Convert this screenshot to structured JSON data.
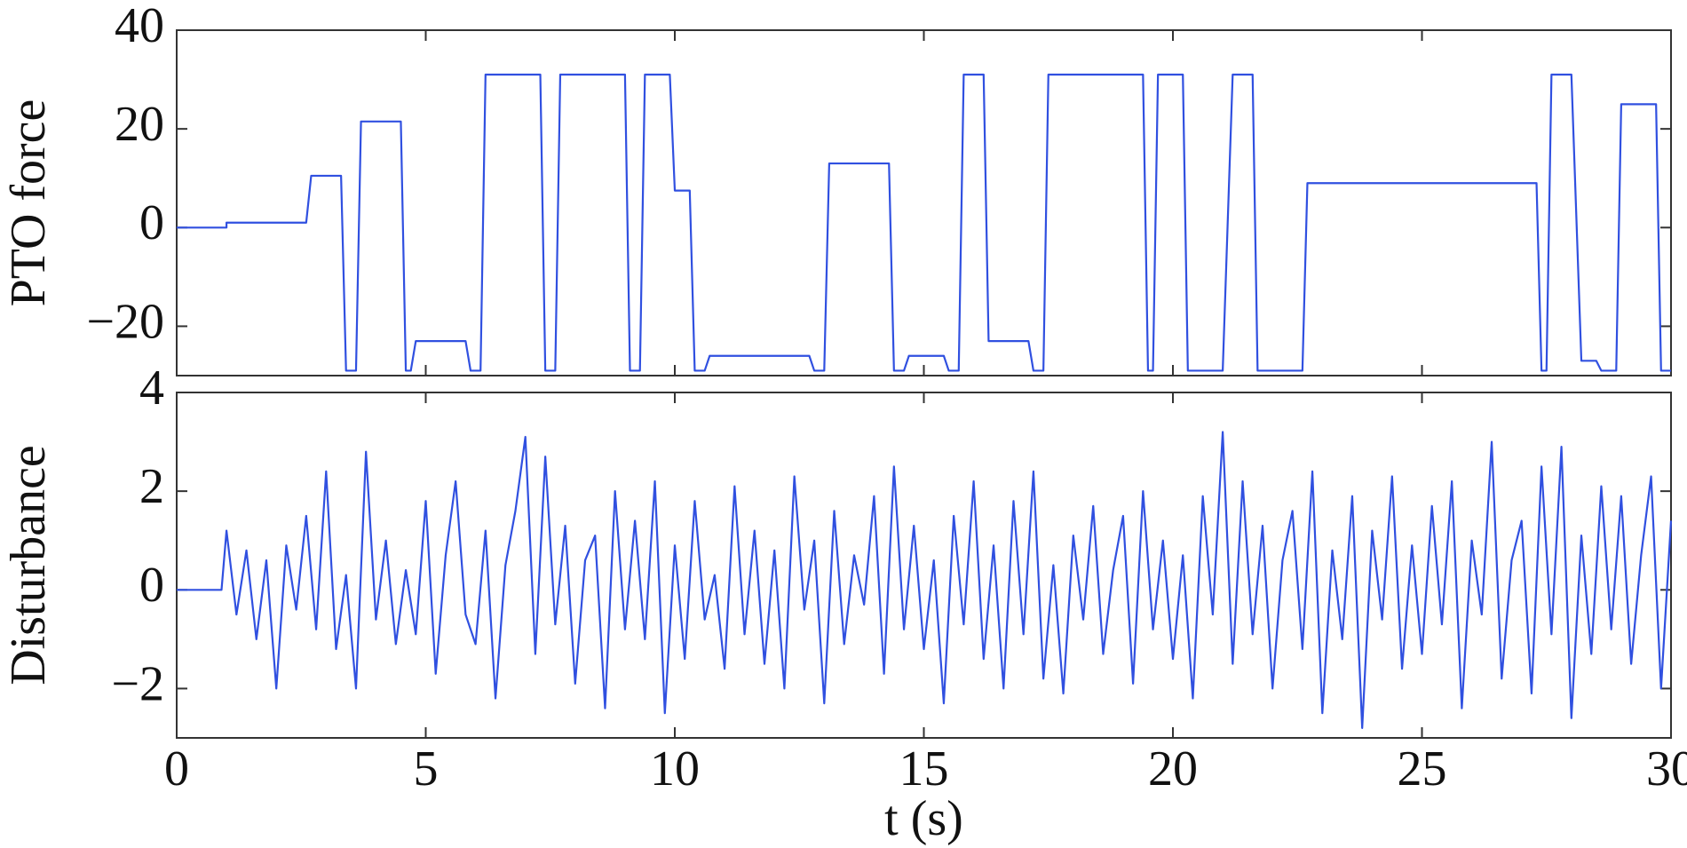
{
  "chart_data": [
    {
      "type": "line",
      "y_label": "PTO force",
      "x": [
        0,
        1.0,
        1.0,
        2.6,
        2.7,
        3.3,
        3.4,
        3.6,
        3.7,
        4.5,
        4.6,
        4.7,
        4.8,
        5.8,
        5.9,
        6.1,
        6.2,
        7.3,
        7.4,
        7.6,
        7.7,
        9.0,
        9.1,
        9.3,
        9.4,
        9.9,
        10.0,
        10.3,
        10.4,
        10.6,
        10.7,
        12.7,
        12.8,
        13.0,
        13.1,
        14.3,
        14.4,
        14.6,
        14.7,
        15.4,
        15.5,
        15.7,
        15.8,
        16.2,
        16.3,
        17.1,
        17.2,
        17.4,
        17.5,
        19.4,
        19.5,
        19.6,
        19.7,
        20.2,
        20.3,
        21.0,
        21.2,
        21.6,
        21.7,
        22.6,
        22.7,
        27.3,
        27.4,
        27.5,
        27.6,
        28.0,
        28.2,
        28.5,
        28.6,
        28.9,
        29.0,
        29.7,
        29.8,
        30.0
      ],
      "series": [
        {
          "color": "#3050e0",
          "values": [
            0,
            0,
            1,
            1,
            10.5,
            10.5,
            -29,
            -29,
            21.5,
            21.5,
            -29,
            -29,
            -23,
            -23,
            -29,
            -29,
            31,
            31,
            -29,
            -29,
            31,
            31,
            -29,
            -29,
            31,
            31,
            7.5,
            7.5,
            -29,
            -29,
            -26,
            -26,
            -29,
            -29,
            13,
            13,
            -29,
            -29,
            -26,
            -26,
            -29,
            -29,
            31,
            31,
            -23,
            -23,
            -29,
            -29,
            31,
            31,
            -29,
            -29,
            31,
            31,
            -29,
            -29,
            31,
            31,
            -29,
            -29,
            9,
            9,
            -29,
            -29,
            31,
            31,
            -27,
            -27,
            -29,
            -29,
            25,
            25,
            -29,
            -29
          ]
        }
      ],
      "xlim": [
        0,
        30
      ],
      "ylim": [
        -30,
        40
      ],
      "yticks": [
        {
          "value": -20,
          "label": "−20"
        },
        0,
        20,
        40
      ]
    },
    {
      "type": "line",
      "y_label": "Disturbance",
      "x_label": "t (s)",
      "x": [
        0,
        0.9,
        1.0,
        1.2,
        1.4,
        1.6,
        1.8,
        2.0,
        2.2,
        2.4,
        2.6,
        2.8,
        3.0,
        3.2,
        3.4,
        3.6,
        3.8,
        4.0,
        4.2,
        4.4,
        4.6,
        4.8,
        5.0,
        5.2,
        5.4,
        5.6,
        5.8,
        6.0,
        6.2,
        6.4,
        6.6,
        6.8,
        7.0,
        7.2,
        7.4,
        7.6,
        7.8,
        8.0,
        8.2,
        8.4,
        8.6,
        8.8,
        9.0,
        9.2,
        9.4,
        9.6,
        9.8,
        10.0,
        10.2,
        10.4,
        10.6,
        10.8,
        11.0,
        11.2,
        11.4,
        11.6,
        11.8,
        12.0,
        12.2,
        12.4,
        12.6,
        12.8,
        13.0,
        13.2,
        13.4,
        13.6,
        13.8,
        14.0,
        14.2,
        14.4,
        14.6,
        14.8,
        15.0,
        15.2,
        15.4,
        15.6,
        15.8,
        16.0,
        16.2,
        16.4,
        16.6,
        16.8,
        17.0,
        17.2,
        17.4,
        17.6,
        17.8,
        18.0,
        18.2,
        18.4,
        18.6,
        18.8,
        19.0,
        19.2,
        19.4,
        19.6,
        19.8,
        20.0,
        20.2,
        20.4,
        20.6,
        20.8,
        21.0,
        21.2,
        21.4,
        21.6,
        21.8,
        22.0,
        22.2,
        22.4,
        22.6,
        22.8,
        23.0,
        23.2,
        23.4,
        23.6,
        23.8,
        24.0,
        24.2,
        24.4,
        24.6,
        24.8,
        25.0,
        25.2,
        25.4,
        25.6,
        25.8,
        26.0,
        26.2,
        26.4,
        26.6,
        26.8,
        27.0,
        27.2,
        27.4,
        27.6,
        27.8,
        28.0,
        28.2,
        28.4,
        28.6,
        28.8,
        29.0,
        29.2,
        29.4,
        29.6,
        29.8,
        30.0
      ],
      "series": [
        {
          "color": "#3050e0",
          "values": [
            0,
            0,
            1.2,
            -0.5,
            0.8,
            -1.0,
            0.6,
            -2.0,
            0.9,
            -0.4,
            1.5,
            -0.8,
            2.4,
            -1.2,
            0.3,
            -2.0,
            2.8,
            -0.6,
            1.0,
            -1.1,
            0.4,
            -0.9,
            1.8,
            -1.7,
            0.7,
            2.2,
            -0.5,
            -1.1,
            1.2,
            -2.2,
            0.5,
            1.6,
            3.1,
            -1.3,
            2.7,
            -0.7,
            1.3,
            -1.9,
            0.6,
            1.1,
            -2.4,
            2.0,
            -0.8,
            1.4,
            -1.0,
            2.2,
            -2.5,
            0.9,
            -1.4,
            1.8,
            -0.6,
            0.3,
            -1.6,
            2.1,
            -0.9,
            1.2,
            -1.5,
            0.8,
            -2.0,
            2.3,
            -0.4,
            1.0,
            -2.3,
            1.6,
            -1.1,
            0.7,
            -0.3,
            1.9,
            -1.7,
            2.5,
            -0.8,
            1.3,
            -1.2,
            0.6,
            -2.3,
            1.5,
            -0.7,
            2.2,
            -1.4,
            0.9,
            -2.0,
            1.8,
            -0.9,
            2.4,
            -1.8,
            0.5,
            -2.1,
            1.1,
            -0.6,
            1.7,
            -1.3,
            0.4,
            1.5,
            -1.9,
            2.0,
            -0.8,
            1.0,
            -1.4,
            0.7,
            -2.2,
            1.9,
            -0.5,
            3.2,
            -1.5,
            2.2,
            -0.9,
            1.3,
            -2.0,
            0.6,
            1.6,
            -1.2,
            2.4,
            -2.5,
            0.8,
            -1.0,
            1.9,
            -2.8,
            1.2,
            -0.6,
            2.3,
            -1.6,
            0.9,
            -1.3,
            1.7,
            -0.7,
            2.2,
            -2.4,
            1.0,
            -0.5,
            3.0,
            -1.8,
            0.6,
            1.4,
            -2.1,
            2.5,
            -0.9,
            2.9,
            -2.6,
            1.1,
            -1.3,
            2.1,
            -0.8,
            1.9,
            -1.5,
            0.7,
            2.3,
            -2.0,
            1.4
          ]
        }
      ],
      "xlim": [
        0,
        30
      ],
      "ylim": [
        -3,
        4
      ],
      "xticks": [
        0,
        5,
        10,
        15,
        20,
        25,
        30
      ],
      "yticks": [
        {
          "value": -2,
          "label": "−2"
        },
        0,
        2,
        4
      ]
    }
  ]
}
